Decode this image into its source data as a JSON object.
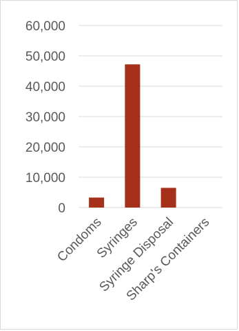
{
  "chart_data": {
    "type": "bar",
    "categories": [
      "Condoms",
      "Syringes",
      "Syringe Disposal",
      "Sharp's Containers"
    ],
    "values": [
      3300,
      47200,
      6500,
      0
    ],
    "ylim": [
      0,
      60000
    ],
    "yticks": [
      "0",
      "10,000",
      "20,000",
      "30,000",
      "40,000",
      "50,000",
      "60,000"
    ],
    "ytick_values": [
      0,
      10000,
      20000,
      30000,
      40000,
      50000,
      60000
    ],
    "grid": true,
    "legend": "none",
    "bar_color": "#a5311b",
    "gridline_color": "#d9d9d9"
  }
}
